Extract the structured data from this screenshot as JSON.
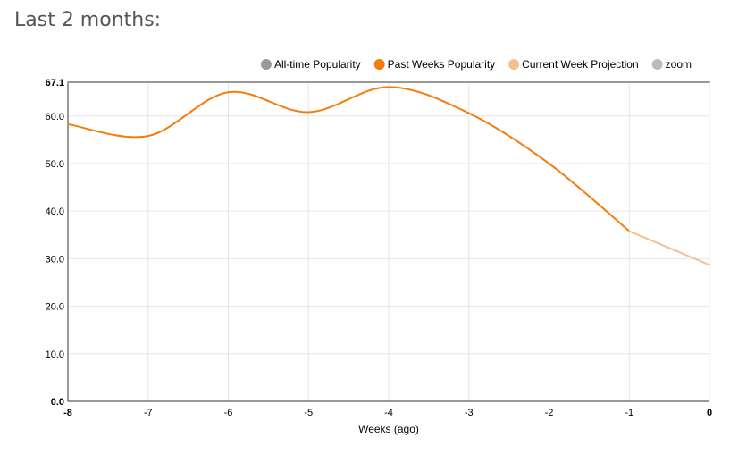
{
  "page": {
    "heading": "Last 2 months:"
  },
  "chart_data": {
    "type": "line",
    "xlabel": "Weeks (ago)",
    "ylabel": "",
    "xlim": [
      -8,
      0
    ],
    "ylim": [
      0,
      67.1
    ],
    "x_ticks": [
      "-8",
      "-7",
      "-6",
      "-5",
      "-4",
      "-3",
      "-2",
      "-1",
      "0"
    ],
    "y_ticks": [
      "0.0",
      "10.0",
      "20.0",
      "30.0",
      "40.0",
      "50.0",
      "60.0"
    ],
    "y_max_label": "67.1",
    "grid": true,
    "legend_position": "top-right",
    "legend": [
      {
        "name": "All-time Popularity",
        "color": "#999999"
      },
      {
        "name": "Past Weeks Popularity",
        "color": "#f57c0a"
      },
      {
        "name": "Current Week Projection",
        "color": "#f7c08f"
      },
      {
        "name": "zoom",
        "color": "#bbbbbb"
      }
    ],
    "series": [
      {
        "name": "All-time Popularity",
        "color": "#999999",
        "x": [
          -8,
          0
        ],
        "y": [
          67.1,
          67.1
        ]
      },
      {
        "name": "Past Weeks Popularity",
        "color": "#f57c0a",
        "x": [
          -8,
          -7,
          -6,
          -5,
          -4,
          -3,
          -2,
          -1
        ],
        "y": [
          58.3,
          55.8,
          65.0,
          60.8,
          66.1,
          60.6,
          50.0,
          35.8
        ]
      },
      {
        "name": "Current Week Projection",
        "color": "#f7c08f",
        "x": [
          -1,
          0
        ],
        "y": [
          35.8,
          28.7
        ]
      }
    ]
  }
}
